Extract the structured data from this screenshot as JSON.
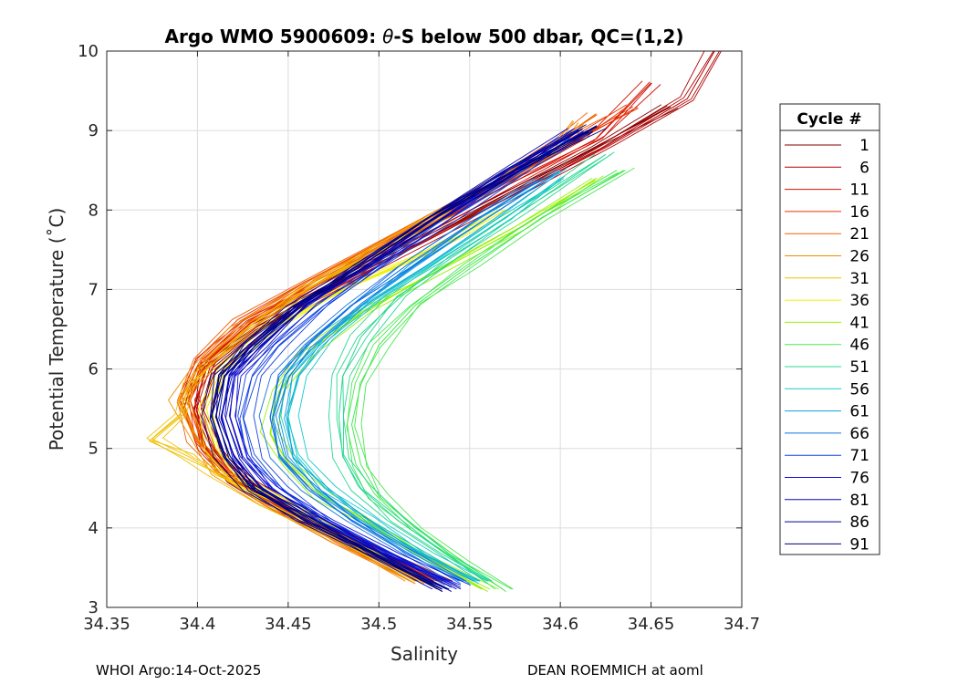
{
  "chart_data": {
    "type": "line",
    "title_prefix": "Argo WMO 5900609: ",
    "title_theta": "θ",
    "title_suffix": "-S below 500 dbar,  QC=(1,2)",
    "xlabel": "Salinity",
    "ylabel": "Potential Temperature (˚C)",
    "xlim": [
      34.35,
      34.7
    ],
    "ylim": [
      3,
      10
    ],
    "xticks": [
      "34.35",
      "34.4",
      "34.45",
      "34.5",
      "34.55",
      "34.6",
      "34.65",
      "34.7"
    ],
    "yticks": [
      "3",
      "4",
      "5",
      "6",
      "7",
      "8",
      "9",
      "10"
    ],
    "grid": true,
    "legend": {
      "title": "Cycle #",
      "placement": "outside-right",
      "entries": [
        "1",
        "6",
        "11",
        "16",
        "21",
        "26",
        "31",
        "36",
        "41",
        "46",
        "51",
        "56",
        "61",
        "66",
        "71",
        "76",
        "81",
        "86",
        "91"
      ],
      "colors": [
        "#800000",
        "#b00000",
        "#d41000",
        "#e83400",
        "#f06000",
        "#f08c00",
        "#f0c000",
        "#f0f000",
        "#98f000",
        "#48e850",
        "#28d890",
        "#18c8c8",
        "#10a0e0",
        "#1070e0",
        "#1040e0",
        "#1010d8",
        "#0808b8",
        "#000098",
        "#00007a"
      ]
    },
    "series_shape": {
      "min_salinity_temp": [
        5.2,
        5.4,
        5.8,
        6.3
      ],
      "envelope_note": "one theta-S profile per cycle; C-shaped curve from ~3.2C/34.55 through a salinity minimum near 34.38-34.46 at 5-6C up to ~9-10C/34.6-34.69"
    },
    "series": [
      {
        "cycle": "1",
        "points": [
          [
            34.53,
            3.3
          ],
          [
            34.49,
            3.8
          ],
          [
            34.45,
            4.2
          ],
          [
            34.42,
            4.6
          ],
          [
            34.405,
            5.0
          ],
          [
            34.398,
            5.5
          ],
          [
            34.405,
            6.0
          ],
          [
            34.43,
            6.5
          ],
          [
            34.47,
            7.0
          ],
          [
            34.52,
            7.6
          ],
          [
            34.57,
            8.2
          ],
          [
            34.62,
            8.8
          ],
          [
            34.66,
            9.3
          ]
        ]
      },
      {
        "cycle": "6",
        "points": [
          [
            34.535,
            3.3
          ],
          [
            34.495,
            3.8
          ],
          [
            34.455,
            4.2
          ],
          [
            34.425,
            4.6
          ],
          [
            34.41,
            5.0
          ],
          [
            34.402,
            5.5
          ],
          [
            34.41,
            6.0
          ],
          [
            34.435,
            6.5
          ],
          [
            34.475,
            7.0
          ],
          [
            34.525,
            7.6
          ],
          [
            34.575,
            8.2
          ],
          [
            34.625,
            8.8
          ],
          [
            34.67,
            9.4
          ],
          [
            34.685,
            10.0
          ]
        ]
      },
      {
        "cycle": "11",
        "points": [
          [
            34.53,
            3.3
          ],
          [
            34.49,
            3.8
          ],
          [
            34.45,
            4.2
          ],
          [
            34.42,
            4.6
          ],
          [
            34.404,
            5.0
          ],
          [
            34.396,
            5.6
          ],
          [
            34.405,
            6.1
          ],
          [
            34.43,
            6.6
          ],
          [
            34.47,
            7.1
          ],
          [
            34.52,
            7.7
          ],
          [
            34.57,
            8.3
          ],
          [
            34.62,
            8.9
          ],
          [
            34.65,
            9.6
          ]
        ]
      },
      {
        "cycle": "16",
        "points": [
          [
            34.525,
            3.3
          ],
          [
            34.485,
            3.8
          ],
          [
            34.445,
            4.3
          ],
          [
            34.418,
            4.7
          ],
          [
            34.402,
            5.1
          ],
          [
            34.395,
            5.7
          ],
          [
            34.405,
            6.1
          ],
          [
            34.428,
            6.6
          ],
          [
            34.465,
            7.1
          ],
          [
            34.515,
            7.7
          ],
          [
            34.565,
            8.3
          ],
          [
            34.61,
            8.9
          ],
          [
            34.64,
            9.3
          ]
        ]
      },
      {
        "cycle": "21",
        "points": [
          [
            34.52,
            3.3
          ],
          [
            34.48,
            3.8
          ],
          [
            34.44,
            4.3
          ],
          [
            34.415,
            4.7
          ],
          [
            34.4,
            5.1
          ],
          [
            34.392,
            5.6
          ],
          [
            34.402,
            6.1
          ],
          [
            34.425,
            6.6
          ],
          [
            34.46,
            7.1
          ],
          [
            34.51,
            7.7
          ],
          [
            34.56,
            8.3
          ],
          [
            34.6,
            8.9
          ],
          [
            34.62,
            9.2
          ]
        ]
      },
      {
        "cycle": "26",
        "points": [
          [
            34.52,
            3.3
          ],
          [
            34.48,
            3.8
          ],
          [
            34.44,
            4.3
          ],
          [
            34.412,
            4.7
          ],
          [
            34.398,
            5.2
          ],
          [
            34.39,
            5.6
          ],
          [
            34.4,
            6.0
          ],
          [
            34.422,
            6.5
          ],
          [
            34.46,
            7.0
          ],
          [
            34.505,
            7.6
          ],
          [
            34.555,
            8.2
          ],
          [
            34.6,
            8.8
          ],
          [
            34.61,
            9.1
          ]
        ]
      },
      {
        "cycle": "31",
        "points": [
          [
            34.525,
            3.3
          ],
          [
            34.485,
            3.8
          ],
          [
            34.44,
            4.3
          ],
          [
            34.41,
            4.7
          ],
          [
            34.395,
            4.9
          ],
          [
            34.375,
            5.12
          ],
          [
            34.39,
            5.4
          ],
          [
            34.395,
            5.8
          ],
          [
            34.41,
            6.1
          ],
          [
            34.43,
            6.5
          ],
          [
            34.46,
            7.0
          ],
          [
            34.5,
            7.5
          ],
          [
            34.54,
            8.0
          ]
        ]
      },
      {
        "cycle": "36",
        "points": [
          [
            34.53,
            3.3
          ],
          [
            34.49,
            3.8
          ],
          [
            34.45,
            4.3
          ],
          [
            34.425,
            4.6
          ],
          [
            34.41,
            5.0
          ],
          [
            34.405,
            5.5
          ],
          [
            34.415,
            6.0
          ],
          [
            34.44,
            6.5
          ],
          [
            34.48,
            7.0
          ],
          [
            34.53,
            7.5
          ],
          [
            34.57,
            8.0
          ]
        ]
      },
      {
        "cycle": "41",
        "points": [
          [
            34.56,
            3.2
          ],
          [
            34.53,
            3.6
          ],
          [
            34.5,
            4.0
          ],
          [
            34.47,
            4.4
          ],
          [
            34.45,
            4.8
          ],
          [
            34.44,
            5.2
          ],
          [
            34.445,
            5.7
          ],
          [
            34.46,
            6.2
          ],
          [
            34.49,
            6.7
          ],
          [
            34.53,
            7.2
          ],
          [
            34.58,
            7.8
          ],
          [
            34.62,
            8.4
          ]
        ]
      },
      {
        "cycle": "46",
        "points": [
          [
            34.57,
            3.2
          ],
          [
            34.545,
            3.6
          ],
          [
            34.52,
            4.0
          ],
          [
            34.5,
            4.4
          ],
          [
            34.49,
            4.8
          ],
          [
            34.485,
            5.3
          ],
          [
            34.49,
            5.8
          ],
          [
            34.5,
            6.3
          ],
          [
            34.52,
            6.8
          ],
          [
            34.55,
            7.3
          ],
          [
            34.59,
            7.9
          ],
          [
            34.635,
            8.5
          ]
        ]
      },
      {
        "cycle": "51",
        "points": [
          [
            34.56,
            3.3
          ],
          [
            34.535,
            3.7
          ],
          [
            34.51,
            4.1
          ],
          [
            34.49,
            4.5
          ],
          [
            34.48,
            4.9
          ],
          [
            34.478,
            5.4
          ],
          [
            34.48,
            5.9
          ],
          [
            34.49,
            6.4
          ],
          [
            34.51,
            6.9
          ],
          [
            34.54,
            7.4
          ],
          [
            34.58,
            8.0
          ],
          [
            34.625,
            8.7
          ]
        ]
      },
      {
        "cycle": "56",
        "points": [
          [
            34.555,
            3.3
          ],
          [
            34.525,
            3.7
          ],
          [
            34.495,
            4.1
          ],
          [
            34.47,
            4.5
          ],
          [
            34.455,
            4.9
          ],
          [
            34.45,
            5.4
          ],
          [
            34.455,
            5.9
          ],
          [
            34.47,
            6.4
          ],
          [
            34.5,
            6.9
          ],
          [
            34.535,
            7.4
          ],
          [
            34.57,
            7.9
          ],
          [
            34.6,
            8.4
          ]
        ]
      },
      {
        "cycle": "61",
        "points": [
          [
            34.55,
            3.3
          ],
          [
            34.52,
            3.7
          ],
          [
            34.49,
            4.1
          ],
          [
            34.465,
            4.5
          ],
          [
            34.45,
            4.9
          ],
          [
            34.445,
            5.4
          ],
          [
            34.45,
            5.9
          ],
          [
            34.465,
            6.3
          ],
          [
            34.49,
            6.8
          ],
          [
            34.52,
            7.3
          ],
          [
            34.56,
            7.9
          ],
          [
            34.6,
            8.5
          ]
        ]
      },
      {
        "cycle": "66",
        "points": [
          [
            34.545,
            3.3
          ],
          [
            34.515,
            3.7
          ],
          [
            34.485,
            4.1
          ],
          [
            34.46,
            4.5
          ],
          [
            34.445,
            4.9
          ],
          [
            34.44,
            5.4
          ],
          [
            34.445,
            5.9
          ],
          [
            34.46,
            6.3
          ],
          [
            34.485,
            6.8
          ],
          [
            34.515,
            7.3
          ],
          [
            34.555,
            7.9
          ],
          [
            34.59,
            8.4
          ]
        ]
      },
      {
        "cycle": "71",
        "points": [
          [
            34.54,
            3.25
          ],
          [
            34.505,
            3.7
          ],
          [
            34.47,
            4.1
          ],
          [
            34.445,
            4.5
          ],
          [
            34.43,
            4.9
          ],
          [
            34.425,
            5.4
          ],
          [
            34.43,
            5.9
          ],
          [
            34.445,
            6.3
          ],
          [
            34.47,
            6.8
          ],
          [
            34.5,
            7.3
          ],
          [
            34.54,
            7.9
          ],
          [
            34.58,
            8.5
          ],
          [
            34.605,
            8.9
          ]
        ]
      },
      {
        "cycle": "76",
        "points": [
          [
            34.545,
            3.25
          ],
          [
            34.505,
            3.7
          ],
          [
            34.47,
            4.1
          ],
          [
            34.44,
            4.5
          ],
          [
            34.425,
            4.9
          ],
          [
            34.418,
            5.4
          ],
          [
            34.42,
            5.9
          ],
          [
            34.435,
            6.3
          ],
          [
            34.46,
            6.8
          ],
          [
            34.495,
            7.3
          ],
          [
            34.535,
            7.9
          ],
          [
            34.575,
            8.5
          ],
          [
            34.61,
            9.0
          ]
        ]
      },
      {
        "cycle": "81",
        "points": [
          [
            34.54,
            3.2
          ],
          [
            34.5,
            3.7
          ],
          [
            34.465,
            4.1
          ],
          [
            34.435,
            4.5
          ],
          [
            34.42,
            4.9
          ],
          [
            34.413,
            5.4
          ],
          [
            34.418,
            5.9
          ],
          [
            34.432,
            6.3
          ],
          [
            34.458,
            6.8
          ],
          [
            34.49,
            7.3
          ],
          [
            34.53,
            7.9
          ],
          [
            34.57,
            8.5
          ],
          [
            34.61,
            9.0
          ]
        ]
      },
      {
        "cycle": "86",
        "points": [
          [
            34.535,
            3.2
          ],
          [
            34.495,
            3.7
          ],
          [
            34.46,
            4.1
          ],
          [
            34.432,
            4.5
          ],
          [
            34.418,
            4.9
          ],
          [
            34.41,
            5.4
          ],
          [
            34.415,
            5.9
          ],
          [
            34.43,
            6.3
          ],
          [
            34.455,
            6.8
          ],
          [
            34.49,
            7.3
          ],
          [
            34.53,
            7.9
          ],
          [
            34.575,
            8.5
          ],
          [
            34.615,
            9.0
          ]
        ]
      },
      {
        "cycle": "91",
        "points": [
          [
            34.535,
            3.2
          ],
          [
            34.495,
            3.7
          ],
          [
            34.46,
            4.1
          ],
          [
            34.43,
            4.5
          ],
          [
            34.415,
            4.9
          ],
          [
            34.408,
            5.4
          ],
          [
            34.412,
            5.9
          ],
          [
            34.428,
            6.3
          ],
          [
            34.455,
            6.8
          ],
          [
            34.49,
            7.3
          ],
          [
            34.53,
            7.9
          ],
          [
            34.575,
            8.5
          ],
          [
            34.62,
            9.05
          ]
        ]
      }
    ]
  },
  "footer": {
    "left": "WHOI Argo:14-Oct-2025",
    "right": "DEAN ROEMMICH at aoml"
  }
}
